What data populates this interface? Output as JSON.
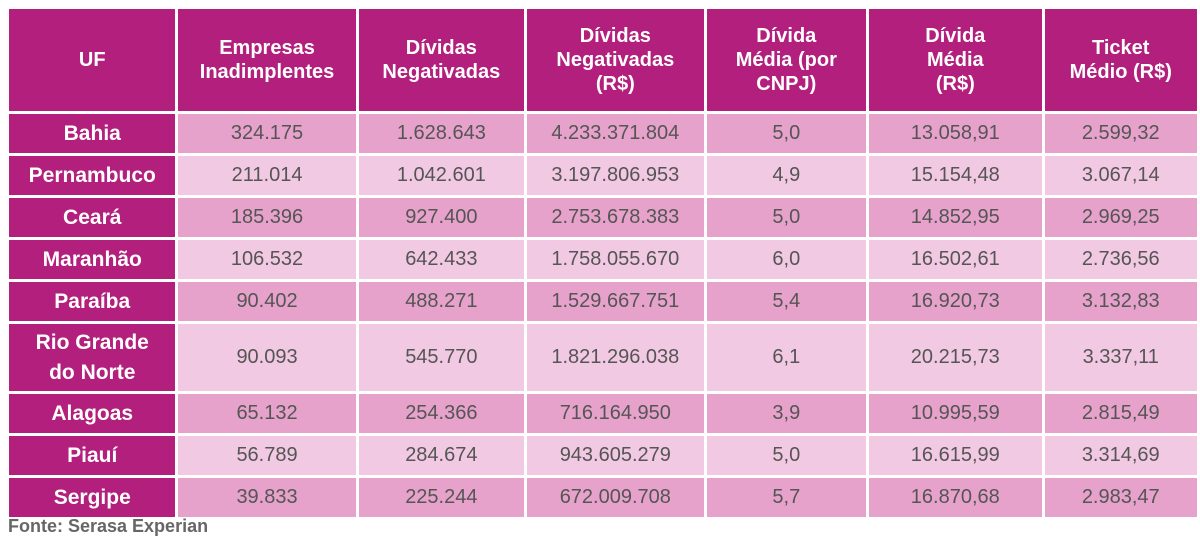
{
  "chart_data": {
    "type": "table",
    "columns": [
      [
        "UF"
      ],
      [
        "Empresas",
        "Inadimplentes"
      ],
      [
        "Dívidas",
        "Negativadas"
      ],
      [
        "Dívidas",
        "Negativadas",
        "(R$)"
      ],
      [
        "Dívida",
        "Média (por",
        "CNPJ)"
      ],
      [
        "Dívida",
        "Média",
        "(R$)"
      ],
      [
        "Ticket",
        "Médio (R$)"
      ]
    ],
    "rows": [
      {
        "uf": [
          "Bahia"
        ],
        "values": [
          "324.175",
          "1.628.643",
          "4.233.371.804",
          "5,0",
          "13.058,91",
          "2.599,32"
        ]
      },
      {
        "uf": [
          "Pernambuco"
        ],
        "values": [
          "211.014",
          "1.042.601",
          "3.197.806.953",
          "4,9",
          "15.154,48",
          "3.067,14"
        ]
      },
      {
        "uf": [
          "Ceará"
        ],
        "values": [
          "185.396",
          "927.400",
          "2.753.678.383",
          "5,0",
          "14.852,95",
          "2.969,25"
        ]
      },
      {
        "uf": [
          "Maranhão"
        ],
        "values": [
          "106.532",
          "642.433",
          "1.758.055.670",
          "6,0",
          "16.502,61",
          "2.736,56"
        ]
      },
      {
        "uf": [
          "Paraíba"
        ],
        "values": [
          "90.402",
          "488.271",
          "1.529.667.751",
          "5,4",
          "16.920,73",
          "3.132,83"
        ]
      },
      {
        "uf": [
          "Rio Grande",
          "do Norte"
        ],
        "values": [
          "90.093",
          "545.770",
          "1.821.296.038",
          "6,1",
          "20.215,73",
          "3.337,11"
        ]
      },
      {
        "uf": [
          "Alagoas"
        ],
        "values": [
          "65.132",
          "254.366",
          "716.164.950",
          "3,9",
          "10.995,59",
          "2.815,49"
        ]
      },
      {
        "uf": [
          "Piauí"
        ],
        "values": [
          "56.789",
          "284.674",
          "943.605.279",
          "5,0",
          "16.615,99",
          "3.314,69"
        ]
      },
      {
        "uf": [
          "Sergipe"
        ],
        "values": [
          "39.833",
          "225.244",
          "672.009.708",
          "5,7",
          "16.870,68",
          "2.983,47"
        ]
      }
    ]
  },
  "source": "Fonte: Serasa Experian",
  "colors": {
    "header_bg": "#b31f7c",
    "header_text": "#ffffff",
    "row_odd_bg": "#e6a2cb",
    "row_even_bg": "#f2c9e2",
    "cell_text": "#555555",
    "source_text": "#666666"
  }
}
